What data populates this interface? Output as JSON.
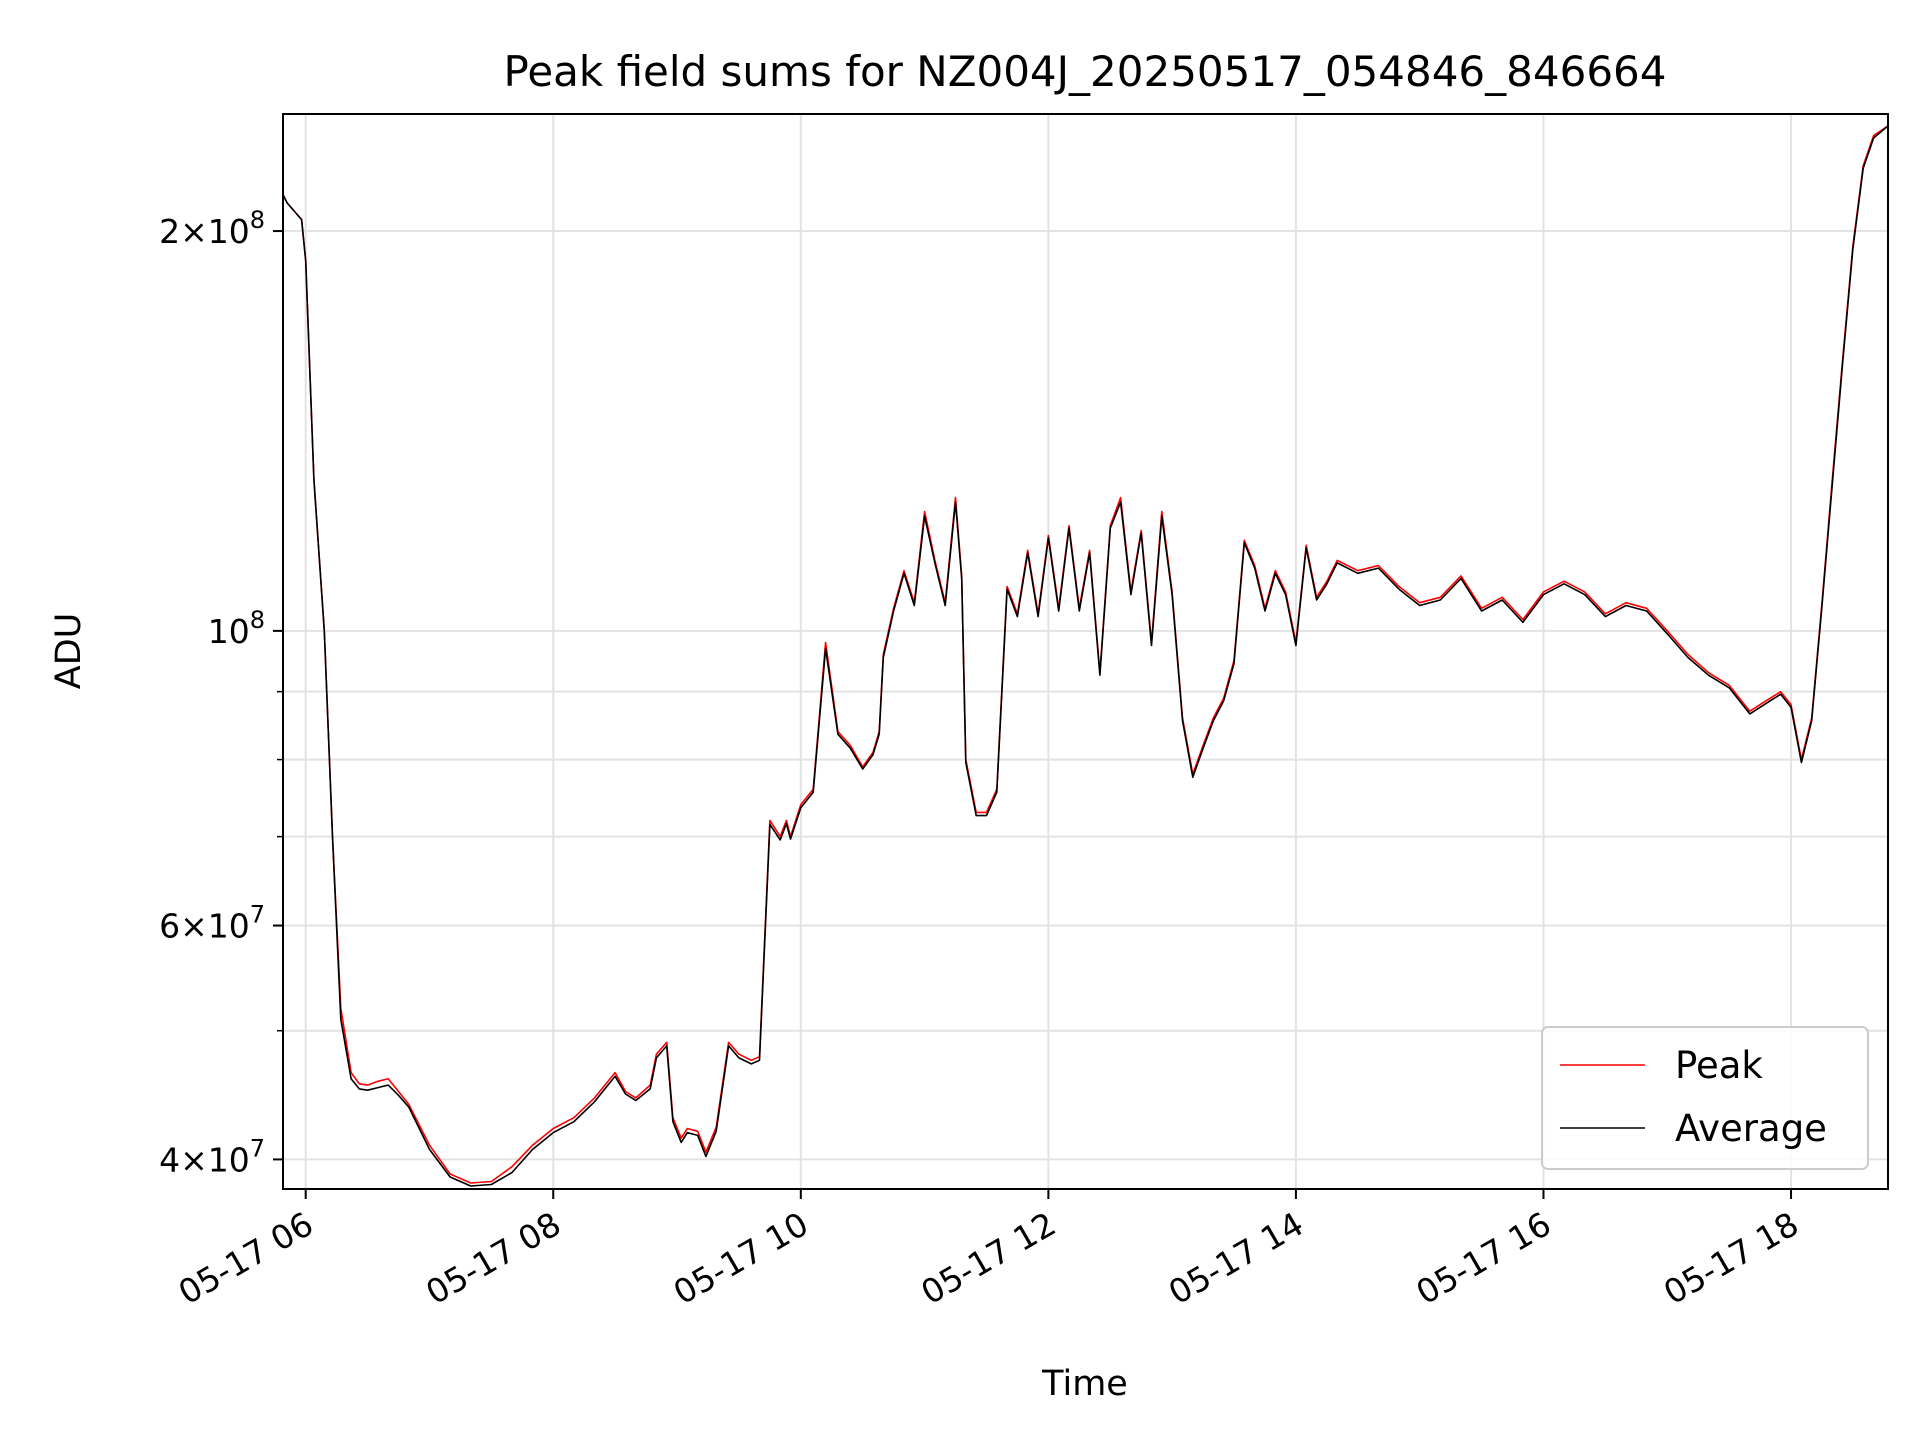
{
  "chart_data": {
    "type": "line",
    "title": "Peak field sums for NZ004J_20250517_054846_846664",
    "xlabel": "Time",
    "ylabel": "ADU",
    "y_scale": "log",
    "ylim": [
      38000000,
      245000000
    ],
    "xlim": [
      "05-17 05:49",
      "05-17 18:47"
    ],
    "grid": true,
    "legend_position": "bottom-right",
    "x_ticks": [
      "05-17 06",
      "05-17 08",
      "05-17 10",
      "05-17 12",
      "05-17 14",
      "05-17 16",
      "05-17 18"
    ],
    "y_ticks": [
      {
        "value": 40000000,
        "mantissa": "4",
        "exponent": "7"
      },
      {
        "value": 60000000,
        "mantissa": "6",
        "exponent": "7"
      },
      {
        "value": 100000000,
        "mantissa": "",
        "exponent": "8"
      },
      {
        "value": 200000000,
        "mantissa": "2",
        "exponent": "8"
      }
    ],
    "y_minor_ticks": [
      50000000,
      70000000,
      80000000,
      90000000
    ],
    "x": [
      "05:49",
      "05:51",
      "05:58",
      "06:00",
      "06:04",
      "06:09",
      "06:13",
      "06:17",
      "06:22",
      "06:26",
      "06:30",
      "06:35",
      "06:40",
      "06:45",
      "06:50",
      "07:00",
      "07:10",
      "07:20",
      "07:30",
      "07:40",
      "07:50",
      "08:00",
      "08:10",
      "08:20",
      "08:30",
      "08:35",
      "08:40",
      "08:47",
      "08:50",
      "08:55",
      "08:58",
      "09:02",
      "09:05",
      "09:10",
      "09:14",
      "09:19",
      "09:25",
      "09:30",
      "09:36",
      "09:40",
      "09:45",
      "09:50",
      "09:53",
      "09:55",
      "10:00",
      "10:06",
      "10:12",
      "10:18",
      "10:24",
      "10:30",
      "10:35",
      "10:38",
      "10:40",
      "10:45",
      "10:50",
      "10:55",
      "11:00",
      "11:05",
      "11:10",
      "11:15",
      "11:18",
      "11:20",
      "11:25",
      "11:30",
      "11:35",
      "11:40",
      "11:45",
      "11:50",
      "11:55",
      "12:00",
      "12:05",
      "12:10",
      "12:15",
      "12:20",
      "12:25",
      "12:30",
      "12:35",
      "12:40",
      "12:45",
      "12:50",
      "12:55",
      "13:00",
      "13:05",
      "13:10",
      "13:15",
      "13:20",
      "13:25",
      "13:30",
      "13:35",
      "13:40",
      "13:45",
      "13:50",
      "13:55",
      "14:00",
      "14:05",
      "14:10",
      "14:15",
      "14:20",
      "14:30",
      "14:40",
      "14:50",
      "15:00",
      "15:10",
      "15:20",
      "15:30",
      "15:40",
      "15:50",
      "16:00",
      "16:10",
      "16:20",
      "16:30",
      "16:40",
      "16:50",
      "17:00",
      "17:10",
      "17:20",
      "17:30",
      "17:40",
      "17:50",
      "17:55",
      "18:00",
      "18:05",
      "18:10",
      "18:15",
      "18:20",
      "18:25",
      "18:30",
      "18:35",
      "18:40",
      "18:47"
    ],
    "series": [
      {
        "name": "Peak",
        "color": "#ff0000",
        "values": [
          213000000,
          210000000,
          204000000,
          190000000,
          130000000,
          100000000,
          70000000,
          52000000,
          46500000,
          45600000,
          45500000,
          45800000,
          46000000,
          45000000,
          44000000,
          41000000,
          39000000,
          38400000,
          38500000,
          39500000,
          41000000,
          42200000,
          43000000,
          44500000,
          46500000,
          45000000,
          44500000,
          45500000,
          48000000,
          49000000,
          43000000,
          41500000,
          42200000,
          42000000,
          40500000,
          42300000,
          49000000,
          48000000,
          47500000,
          47800000,
          72000000,
          70000000,
          72000000,
          70000000,
          74000000,
          76000000,
          98000000,
          84000000,
          82000000,
          79000000,
          81000000,
          84000000,
          96000000,
          104000000,
          111000000,
          105000000,
          123000000,
          113000000,
          105000000,
          126000000,
          110000000,
          80000000,
          73000000,
          73000000,
          76000000,
          108000000,
          103000000,
          115000000,
          103000000,
          118000000,
          104000000,
          120000000,
          104000000,
          115000000,
          93000000,
          120000000,
          126000000,
          107000000,
          119000000,
          98000000,
          123000000,
          107000000,
          86000000,
          78000000,
          82000000,
          86000000,
          89000000,
          95000000,
          117000000,
          112000000,
          104000000,
          111000000,
          107000000,
          98000000,
          116000000,
          106000000,
          109000000,
          113000000,
          111000000,
          112000000,
          108000000,
          105000000,
          106000000,
          110000000,
          104000000,
          106000000,
          102000000,
          107000000,
          109000000,
          107000000,
          103000000,
          105000000,
          104000000,
          100000000,
          96000000,
          93000000,
          91000000,
          87000000,
          89000000,
          90000000,
          88000000,
          80000000,
          86000000,
          105000000,
          130000000,
          160000000,
          195000000,
          224000000,
          236000000,
          240000000
        ]
      },
      {
        "name": "Average",
        "color": "#000000",
        "values": [
          213000000,
          210000000,
          204000000,
          190000000,
          130000000,
          100000000,
          70000000,
          51000000,
          46000000,
          45200000,
          45100000,
          45300000,
          45500000,
          44700000,
          43800000,
          40700000,
          38800000,
          38200000,
          38300000,
          39100000,
          40700000,
          41900000,
          42700000,
          44200000,
          46200000,
          44800000,
          44300000,
          45200000,
          47700000,
          48700000,
          42700000,
          41200000,
          41900000,
          41700000,
          40200000,
          42000000,
          48700000,
          47700000,
          47200000,
          47500000,
          71500000,
          69600000,
          71600000,
          69700000,
          73600000,
          75600000,
          97000000,
          83600000,
          81600000,
          78700000,
          80700000,
          83600000,
          95500000,
          103500000,
          110500000,
          104500000,
          122000000,
          112500000,
          104500000,
          125000000,
          109500000,
          79600000,
          72600000,
          72600000,
          75600000,
          107500000,
          102500000,
          114500000,
          102500000,
          117500000,
          103500000,
          119500000,
          103500000,
          114500000,
          92600000,
          119500000,
          125000000,
          106500000,
          118500000,
          97500000,
          122000000,
          106500000,
          85600000,
          77600000,
          81600000,
          85600000,
          88600000,
          94500000,
          116500000,
          111500000,
          103500000,
          110500000,
          106500000,
          97500000,
          115500000,
          105500000,
          108500000,
          112500000,
          110500000,
          111500000,
          107500000,
          104500000,
          105500000,
          109500000,
          103500000,
          105500000,
          101500000,
          106500000,
          108500000,
          106500000,
          102500000,
          104500000,
          103500000,
          99500000,
          95500000,
          92600000,
          90600000,
          86600000,
          88600000,
          89600000,
          87600000,
          79600000,
          85600000,
          104500000,
          129000000,
          159000000,
          194000000,
          223000000,
          235000000,
          240000000
        ]
      }
    ]
  }
}
